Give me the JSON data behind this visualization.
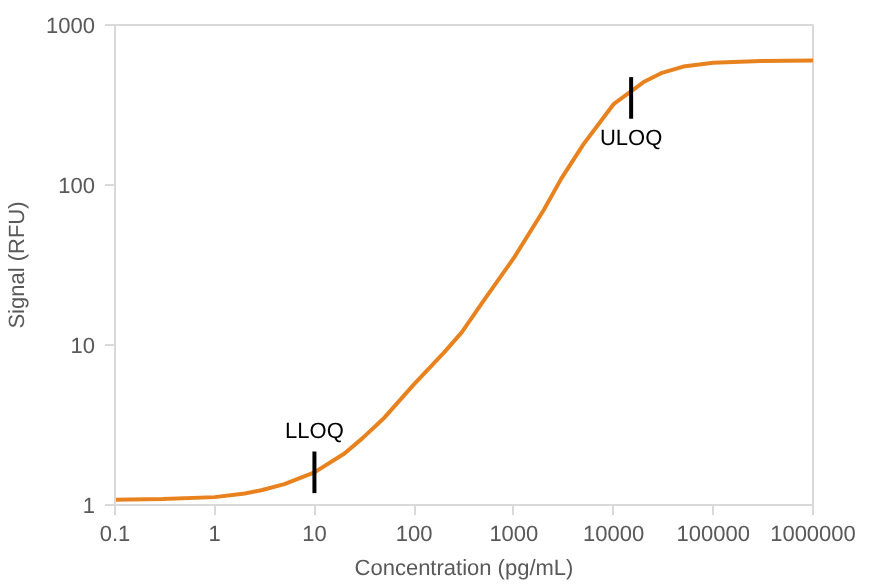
{
  "chart_data": {
    "type": "line",
    "xlabel": "Concentration (pg/mL)",
    "ylabel": "Signal (RFU)",
    "log": "xy",
    "grid": false,
    "marker": "none",
    "line_style": "solid",
    "xlim": [
      0.1,
      1000000
    ],
    "ylim": [
      1,
      1000
    ],
    "xticks": [
      0.1,
      1,
      10,
      100,
      1000,
      10000,
      100000,
      1000000
    ],
    "yticks": [
      1,
      10,
      100,
      1000
    ],
    "series": [
      {
        "color": "#e8821e",
        "x": [
          0.1,
          0.3,
          1,
          2,
          3,
          5,
          10,
          20,
          30,
          50,
          100,
          200,
          300,
          500,
          1000,
          2000,
          3000,
          5000,
          10000,
          20000,
          30000,
          50000,
          100000,
          300000,
          1000000
        ],
        "values": [
          1.08,
          1.09,
          1.12,
          1.18,
          1.24,
          1.35,
          1.6,
          2.1,
          2.6,
          3.5,
          5.7,
          9,
          12,
          19,
          35,
          70,
          110,
          180,
          320,
          440,
          500,
          550,
          580,
          595,
          600
        ]
      }
    ],
    "annotations": [
      {
        "text": "LLOQ",
        "x": 10,
        "y": 1.6
      },
      {
        "text": "ULOQ",
        "x": 15000,
        "y": 350
      }
    ]
  }
}
